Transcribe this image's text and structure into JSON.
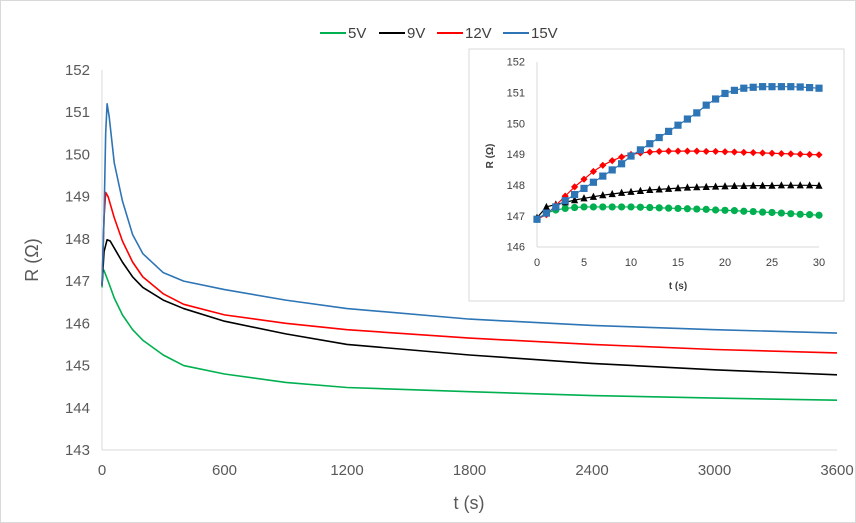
{
  "chart_data": [
    {
      "type": "line",
      "xlabel": "t (s)",
      "ylabel": "R (Ω)",
      "xlim": [
        0,
        3600
      ],
      "ylim": [
        143,
        152
      ],
      "xticks": [
        "0",
        "600",
        "1200",
        "1800",
        "2400",
        "3000",
        "3600"
      ],
      "yticks": [
        "143",
        "144",
        "145",
        "146",
        "147",
        "148",
        "149",
        "150",
        "151",
        "152"
      ],
      "grid": false,
      "legend_position": "top",
      "series": [
        {
          "name": "5V",
          "color": "#00b050",
          "points": [
            [
              0,
              146.85
            ],
            [
              5,
              147.28
            ],
            [
              10,
              147.25
            ],
            [
              30,
              147.0
            ],
            [
              60,
              146.6
            ],
            [
              100,
              146.2
            ],
            [
              150,
              145.85
            ],
            [
              200,
              145.6
            ],
            [
              300,
              145.25
            ],
            [
              400,
              145.0
            ],
            [
              600,
              144.8
            ],
            [
              900,
              144.6
            ],
            [
              1200,
              144.48
            ],
            [
              1800,
              144.38
            ],
            [
              2400,
              144.29
            ],
            [
              3000,
              144.23
            ],
            [
              3600,
              144.18
            ]
          ]
        },
        {
          "name": "9V",
          "color": "#000000",
          "points": [
            [
              0,
              146.9
            ],
            [
              10,
              147.7
            ],
            [
              25,
              147.98
            ],
            [
              40,
              147.95
            ],
            [
              70,
              147.7
            ],
            [
              100,
              147.45
            ],
            [
              150,
              147.1
            ],
            [
              200,
              146.85
            ],
            [
              300,
              146.55
            ],
            [
              400,
              146.35
            ],
            [
              600,
              146.05
            ],
            [
              900,
              145.75
            ],
            [
              1200,
              145.5
            ],
            [
              1800,
              145.25
            ],
            [
              2400,
              145.05
            ],
            [
              3000,
              144.9
            ],
            [
              3600,
              144.78
            ]
          ]
        },
        {
          "name": "12V",
          "color": "#ff0000",
          "points": [
            [
              0,
              146.9
            ],
            [
              10,
              148.5
            ],
            [
              18,
              149.1
            ],
            [
              30,
              149.0
            ],
            [
              60,
              148.5
            ],
            [
              100,
              147.95
            ],
            [
              150,
              147.45
            ],
            [
              200,
              147.1
            ],
            [
              300,
              146.7
            ],
            [
              400,
              146.45
            ],
            [
              600,
              146.2
            ],
            [
              900,
              146.0
            ],
            [
              1200,
              145.85
            ],
            [
              1800,
              145.65
            ],
            [
              2400,
              145.5
            ],
            [
              3000,
              145.38
            ],
            [
              3600,
              145.3
            ]
          ]
        },
        {
          "name": "15V",
          "color": "#2e75b6",
          "points": [
            [
              0,
              146.9
            ],
            [
              10,
              148.5
            ],
            [
              18,
              150.5
            ],
            [
              25,
              151.2
            ],
            [
              35,
              150.9
            ],
            [
              60,
              149.8
            ],
            [
              100,
              148.9
            ],
            [
              150,
              148.1
            ],
            [
              200,
              147.65
            ],
            [
              300,
              147.2
            ],
            [
              400,
              147.0
            ],
            [
              600,
              146.8
            ],
            [
              900,
              146.55
            ],
            [
              1200,
              146.35
            ],
            [
              1800,
              146.1
            ],
            [
              2400,
              145.95
            ],
            [
              3000,
              145.85
            ],
            [
              3600,
              145.77
            ]
          ]
        }
      ]
    },
    {
      "type": "scatter",
      "xlabel": "t (s)",
      "ylabel": "R (Ω)",
      "xlim": [
        0,
        30
      ],
      "ylim": [
        146,
        152
      ],
      "xticks": [
        "0",
        "5",
        "10",
        "15",
        "20",
        "25",
        "30"
      ],
      "yticks": [
        "146",
        "147",
        "148",
        "149",
        "150",
        "151",
        "152"
      ],
      "grid": false,
      "series": [
        {
          "name": "5V",
          "color": "#00b050",
          "marker": "circle",
          "points": [
            [
              0,
              146.9
            ],
            [
              1,
              147.1
            ],
            [
              2,
              147.2
            ],
            [
              3,
              147.25
            ],
            [
              4,
              147.28
            ],
            [
              5,
              147.3
            ],
            [
              6,
              147.3
            ],
            [
              7,
              147.3
            ],
            [
              8,
              147.3
            ],
            [
              9,
              147.3
            ],
            [
              10,
              147.3
            ],
            [
              11,
              147.29
            ],
            [
              12,
              147.28
            ],
            [
              13,
              147.27
            ],
            [
              14,
              147.26
            ],
            [
              15,
              147.25
            ],
            [
              16,
              147.24
            ],
            [
              17,
              147.23
            ],
            [
              18,
              147.22
            ],
            [
              19,
              147.2
            ],
            [
              20,
              147.19
            ],
            [
              21,
              147.18
            ],
            [
              22,
              147.16
            ],
            [
              23,
              147.15
            ],
            [
              24,
              147.13
            ],
            [
              25,
              147.12
            ],
            [
              26,
              147.1
            ],
            [
              27,
              147.08
            ],
            [
              28,
              147.06
            ],
            [
              29,
              147.05
            ],
            [
              30,
              147.03
            ]
          ]
        },
        {
          "name": "9V",
          "color": "#000000",
          "marker": "triangle",
          "points": [
            [
              0,
              146.95
            ],
            [
              1,
              147.3
            ],
            [
              2,
              147.38
            ],
            [
              3,
              147.45
            ],
            [
              4,
              147.52
            ],
            [
              5,
              147.58
            ],
            [
              6,
              147.63
            ],
            [
              7,
              147.68
            ],
            [
              8,
              147.72
            ],
            [
              9,
              147.76
            ],
            [
              10,
              147.79
            ],
            [
              11,
              147.82
            ],
            [
              12,
              147.85
            ],
            [
              13,
              147.87
            ],
            [
              14,
              147.89
            ],
            [
              15,
              147.91
            ],
            [
              16,
              147.93
            ],
            [
              17,
              147.94
            ],
            [
              18,
              147.95
            ],
            [
              19,
              147.96
            ],
            [
              20,
              147.97
            ],
            [
              21,
              147.98
            ],
            [
              22,
              147.98
            ],
            [
              23,
              147.99
            ],
            [
              24,
              147.99
            ],
            [
              25,
              147.99
            ],
            [
              26,
              148.0
            ],
            [
              27,
              148.0
            ],
            [
              28,
              148.0
            ],
            [
              29,
              148.0
            ],
            [
              30,
              147.99
            ]
          ]
        },
        {
          "name": "12V",
          "color": "#ff0000",
          "marker": "diamond",
          "points": [
            [
              0,
              146.9
            ],
            [
              1,
              147.05
            ],
            [
              2,
              147.35
            ],
            [
              3,
              147.65
            ],
            [
              4,
              147.95
            ],
            [
              5,
              148.2
            ],
            [
              6,
              148.45
            ],
            [
              7,
              148.65
            ],
            [
              8,
              148.8
            ],
            [
              9,
              148.92
            ],
            [
              10,
              149.0
            ],
            [
              11,
              149.05
            ],
            [
              12,
              149.08
            ],
            [
              13,
              149.1
            ],
            [
              14,
              149.11
            ],
            [
              15,
              149.11
            ],
            [
              16,
              149.11
            ],
            [
              17,
              149.11
            ],
            [
              18,
              149.1
            ],
            [
              19,
              149.1
            ],
            [
              20,
              149.09
            ],
            [
              21,
              149.08
            ],
            [
              22,
              149.07
            ],
            [
              23,
              149.06
            ],
            [
              24,
              149.05
            ],
            [
              25,
              149.04
            ],
            [
              26,
              149.03
            ],
            [
              27,
              149.02
            ],
            [
              28,
              149.01
            ],
            [
              29,
              149.0
            ],
            [
              30,
              148.99
            ]
          ]
        },
        {
          "name": "15V",
          "color": "#2e75b6",
          "marker": "square",
          "points": [
            [
              0,
              146.9
            ],
            [
              1,
              147.1
            ],
            [
              2,
              147.3
            ],
            [
              3,
              147.5
            ],
            [
              4,
              147.7
            ],
            [
              5,
              147.9
            ],
            [
              6,
              148.1
            ],
            [
              7,
              148.3
            ],
            [
              8,
              148.5
            ],
            [
              9,
              148.7
            ],
            [
              10,
              148.95
            ],
            [
              11,
              149.15
            ],
            [
              12,
              149.35
            ],
            [
              13,
              149.55
            ],
            [
              14,
              149.75
            ],
            [
              15,
              149.95
            ],
            [
              16,
              150.15
            ],
            [
              17,
              150.35
            ],
            [
              18,
              150.6
            ],
            [
              19,
              150.8
            ],
            [
              20,
              150.98
            ],
            [
              21,
              151.08
            ],
            [
              22,
              151.15
            ],
            [
              23,
              151.18
            ],
            [
              24,
              151.2
            ],
            [
              25,
              151.2
            ],
            [
              26,
              151.2
            ],
            [
              27,
              151.2
            ],
            [
              28,
              151.19
            ],
            [
              29,
              151.17
            ],
            [
              30,
              151.15
            ]
          ]
        }
      ]
    }
  ]
}
